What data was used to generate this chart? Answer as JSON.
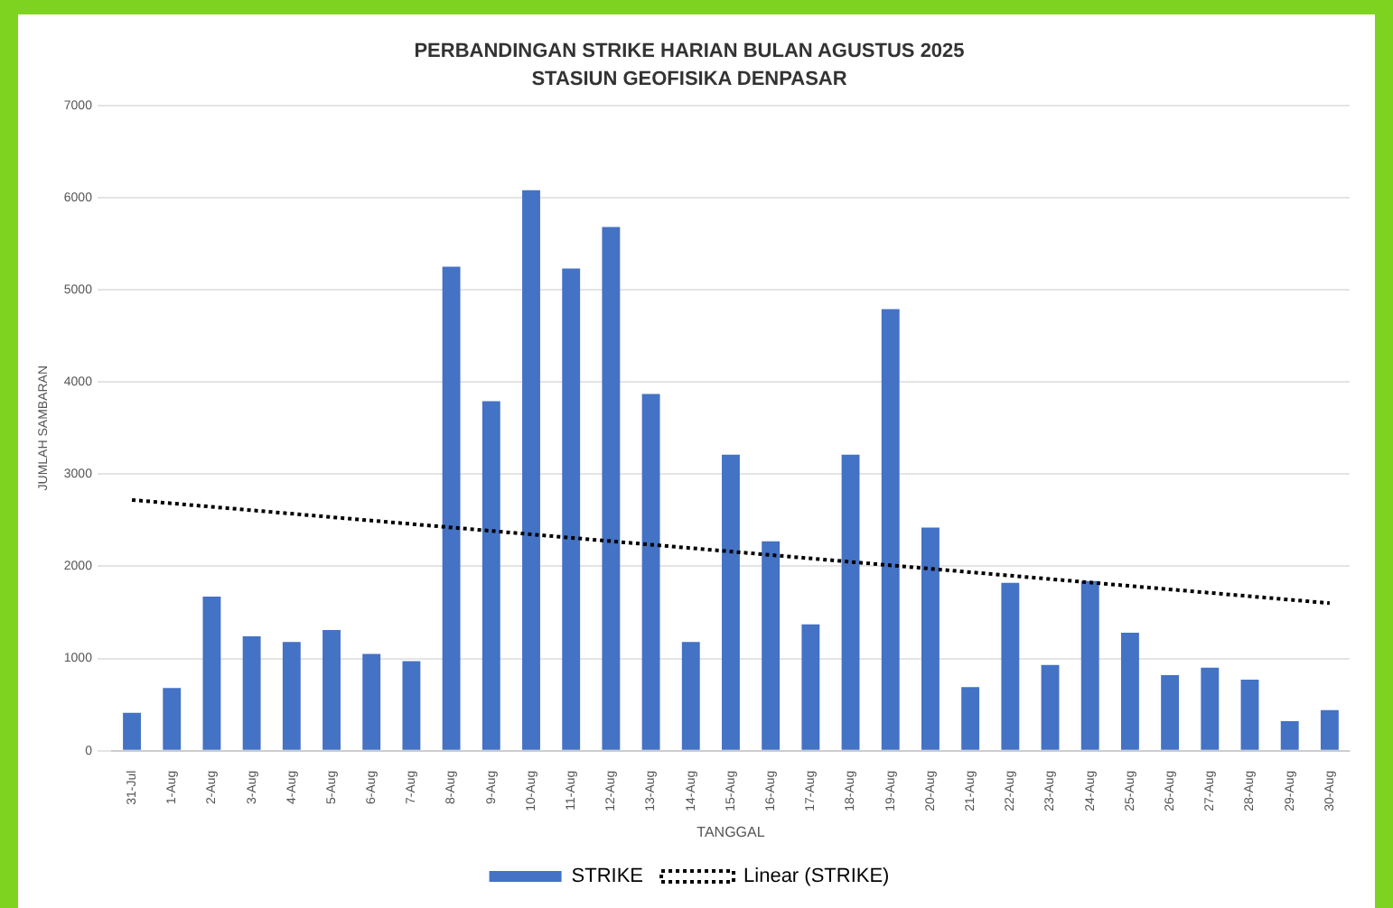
{
  "chart_data": {
    "type": "bar",
    "title": "PERBANDINGAN STRIKE HARIAN BULAN AGUSTUS 2025",
    "subtitle": "STASIUN GEOFISIKA DENPASAR",
    "xlabel": "TANGGAL",
    "ylabel": "JUMLAH SAMBARAN",
    "categories": [
      "31-Jul",
      "1-Aug",
      "2-Aug",
      "3-Aug",
      "4-Aug",
      "5-Aug",
      "6-Aug",
      "7-Aug",
      "8-Aug",
      "9-Aug",
      "10-Aug",
      "11-Aug",
      "12-Aug",
      "13-Aug",
      "14-Aug",
      "15-Aug",
      "16-Aug",
      "17-Aug",
      "18-Aug",
      "19-Aug",
      "20-Aug",
      "21-Aug",
      "22-Aug",
      "23-Aug",
      "24-Aug",
      "25-Aug",
      "26-Aug",
      "27-Aug",
      "28-Aug",
      "29-Aug",
      "30-Aug"
    ],
    "series": [
      {
        "name": "STRIKE",
        "color": "#4472c4",
        "values": [
          410,
          680,
          1670,
          1240,
          1180,
          1310,
          1050,
          970,
          5250,
          3790,
          6080,
          5230,
          5680,
          3870,
          1180,
          3210,
          2270,
          1370,
          3210,
          4790,
          2420,
          690,
          1820,
          930,
          1840,
          1280,
          820,
          900,
          770,
          320,
          440
        ]
      },
      {
        "name": "Linear (STRIKE)",
        "type": "line",
        "color": "#000000",
        "line_style": "dotted",
        "marker": "none",
        "values": [
          2720,
          null,
          null,
          null,
          null,
          null,
          null,
          null,
          null,
          null,
          null,
          null,
          null,
          null,
          null,
          null,
          null,
          null,
          null,
          null,
          null,
          null,
          null,
          null,
          null,
          null,
          null,
          null,
          null,
          null,
          1600
        ]
      }
    ],
    "ylim": [
      0,
      7000
    ],
    "yticks": [
      0,
      1000,
      2000,
      3000,
      4000,
      5000,
      6000,
      7000
    ],
    "grid": "y",
    "legend": "bottom"
  }
}
